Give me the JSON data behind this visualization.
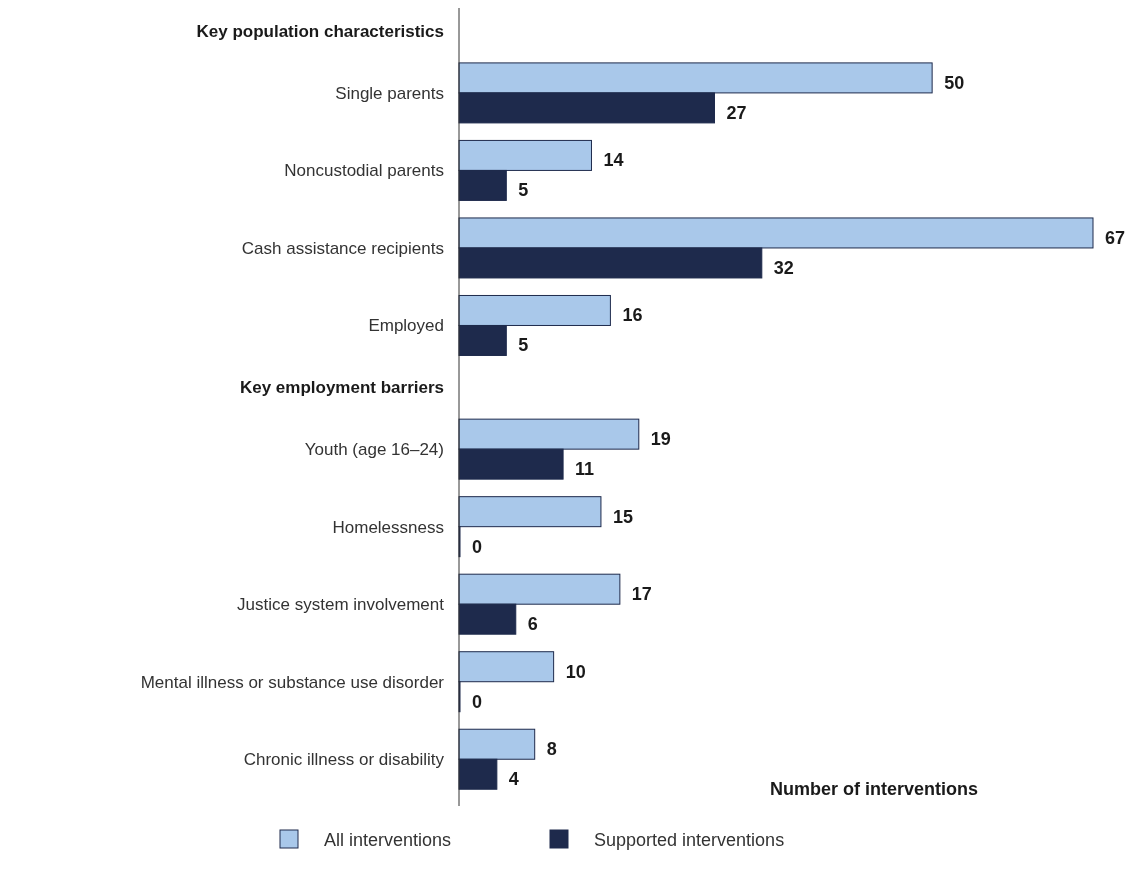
{
  "chart_data": {
    "type": "bar",
    "orientation": "horizontal",
    "xlabel": "Number of interventions",
    "categories": [
      "Key population characteristics",
      "Single parents",
      "Noncustodial parents",
      "Cash assistance recipients",
      "Employed",
      "Key employment barriers",
      "Youth (age 16–24)",
      "Homelessness",
      "Justice system involvement",
      "Mental illness or substance use disorder",
      "Chronic illness or disability"
    ],
    "series": [
      {
        "name": "All interventions",
        "color": "#a9c8ea",
        "values": [
          null,
          50,
          14,
          67,
          16,
          null,
          19,
          15,
          17,
          10,
          8
        ]
      },
      {
        "name": "Supported interventions",
        "color": "#1e2a4c",
        "values": [
          null,
          27,
          5,
          32,
          5,
          null,
          11,
          0,
          6,
          0,
          4
        ]
      }
    ],
    "data_labels": true,
    "legend": "bottom"
  }
}
